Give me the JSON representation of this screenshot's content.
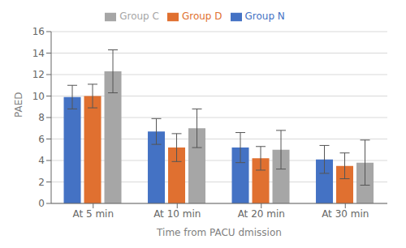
{
  "chart_data": {
    "type": "bar",
    "categories": [
      "At 5 min",
      "At 10 min",
      "At 20 min",
      "At 30 min"
    ],
    "series": [
      {
        "name": "Group N",
        "color": "#4472c4",
        "values": [
          9.9,
          6.7,
          5.2,
          4.1
        ],
        "errors": [
          1.1,
          1.2,
          1.4,
          1.3
        ]
      },
      {
        "name": "Group D",
        "color": "#e07030",
        "values": [
          10.0,
          5.2,
          4.2,
          3.5
        ],
        "errors": [
          1.1,
          1.3,
          1.1,
          1.2
        ]
      },
      {
        "name": "Group C",
        "color": "#a6a6a6",
        "values": [
          12.3,
          7.0,
          5.0,
          3.8
        ],
        "errors": [
          2.0,
          1.8,
          1.8,
          2.1
        ]
      }
    ],
    "xlabel": "Time from PACU dmission",
    "ylabel": "PAED",
    "ylim": [
      0,
      16
    ],
    "yticks": [
      0,
      2,
      4,
      6,
      8,
      10,
      12,
      14,
      16
    ],
    "grid": true,
    "legend": "top"
  }
}
